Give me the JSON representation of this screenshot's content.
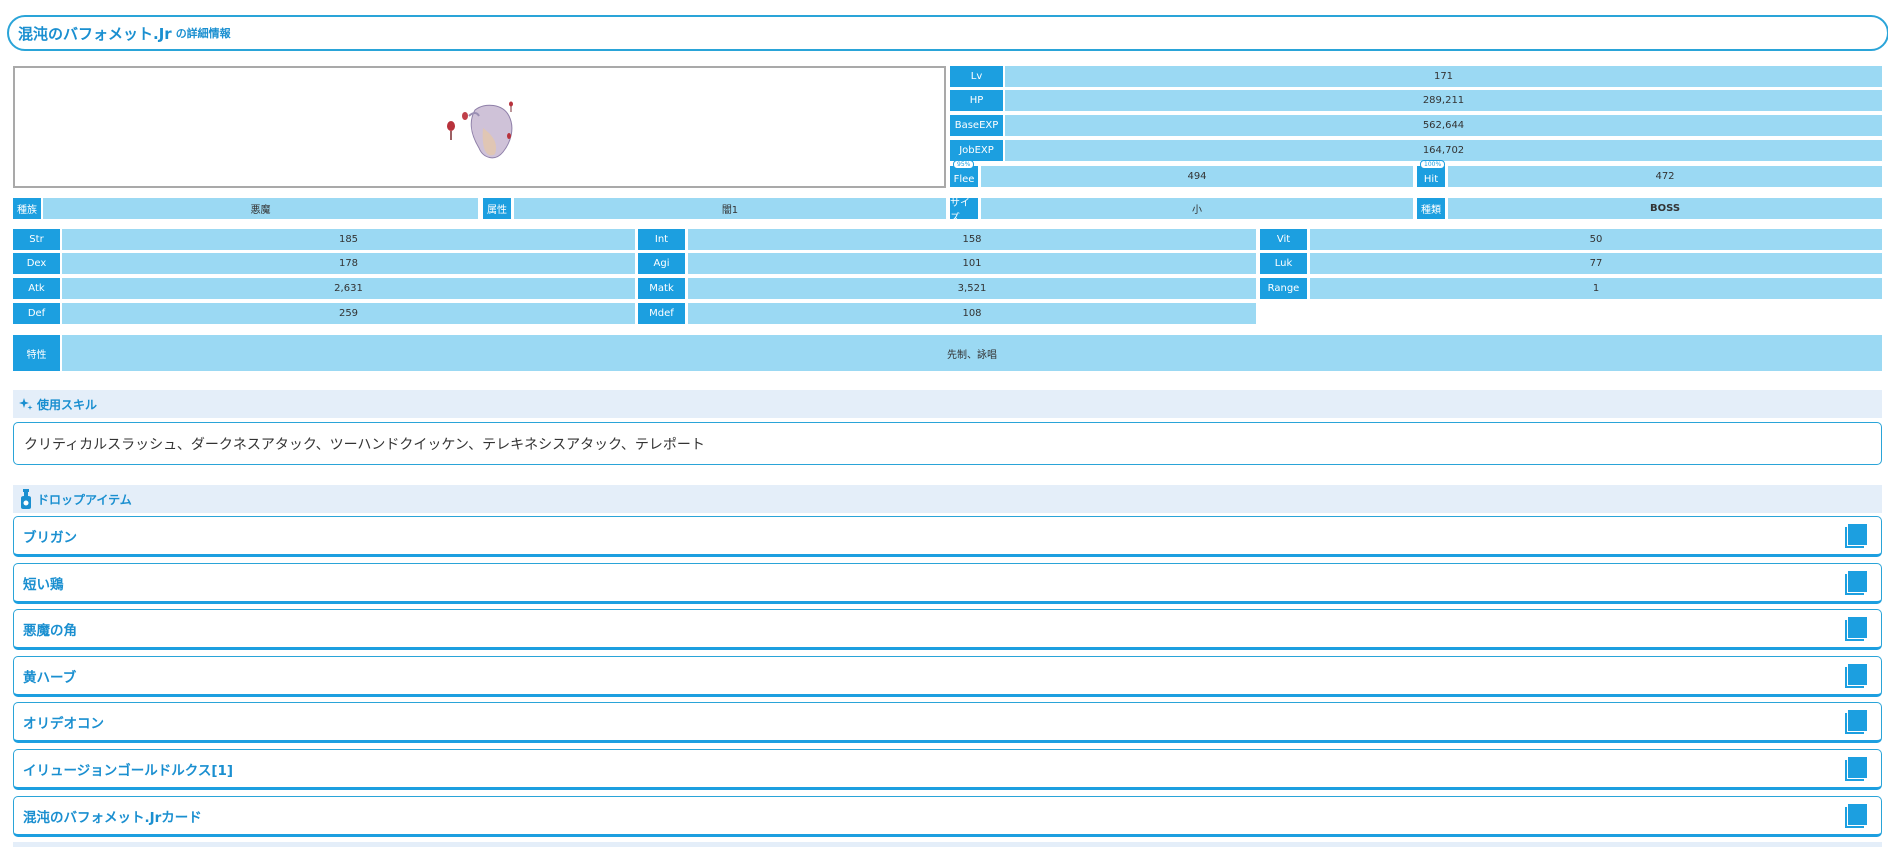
{
  "header": {
    "title": "混沌のバフォメット.Jr",
    "suffix": "の詳細情報"
  },
  "basic_stats": [
    {
      "label": "Lv",
      "value": "171"
    },
    {
      "label": "HP",
      "value": "289,211"
    },
    {
      "label": "BaseEXP",
      "value": "562,644"
    },
    {
      "label": "JobEXP",
      "value": "164,702"
    }
  ],
  "flee": {
    "label": "Flee",
    "badge": "95%",
    "value": "494"
  },
  "hit": {
    "label": "Hit",
    "badge": "100%",
    "value": "472"
  },
  "attributes": [
    {
      "label": "種族",
      "value": "悪魔"
    },
    {
      "label": "属性",
      "value": "闇1"
    },
    {
      "label": "サイズ",
      "value": "小"
    },
    {
      "label": "種類",
      "value": "BOSS"
    }
  ],
  "stat_grid": [
    [
      {
        "label": "Str",
        "value": "185"
      },
      {
        "label": "Int",
        "value": "158"
      },
      {
        "label": "Vit",
        "value": "50"
      }
    ],
    [
      {
        "label": "Dex",
        "value": "178"
      },
      {
        "label": "Agi",
        "value": "101"
      },
      {
        "label": "Luk",
        "value": "77"
      }
    ],
    [
      {
        "label": "Atk",
        "value": "2,631"
      },
      {
        "label": "Matk",
        "value": "3,521"
      },
      {
        "label": "Range",
        "value": "1"
      }
    ],
    [
      {
        "label": "Def",
        "value": "259"
      },
      {
        "label": "Mdef",
        "value": "108"
      }
    ]
  ],
  "traits": {
    "label": "特性",
    "value": "先制、詠唱"
  },
  "skills": {
    "heading": "使用スキル",
    "text": "クリティカルスラッシュ、ダークネスアタック、ツーハンドクイッケン、テレキネシスアタック、テレポート"
  },
  "drops": {
    "heading": "ドロップアイテム",
    "items": [
      "ブリガン",
      "短い鶏",
      "悪魔の角",
      "黄ハーブ",
      "オリデオコン",
      "イリュージョンゴールドルクス[1]",
      "混沌のバフォメット.Jrカード"
    ]
  },
  "colors": {
    "accent": "#1c9fe0",
    "value_bg": "#9bd9f3",
    "title": "#1a8fd0"
  }
}
